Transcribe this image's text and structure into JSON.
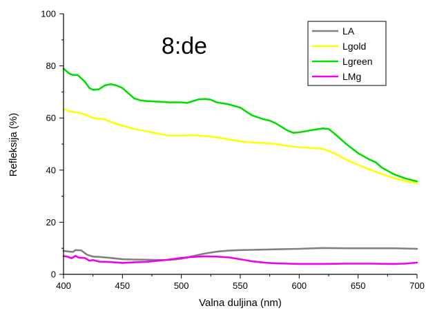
{
  "chart_data": {
    "type": "line",
    "title": "8:de",
    "xlabel": "Valna duljina (nm)",
    "ylabel": "Refleksija (%)",
    "xlim": [
      400,
      700
    ],
    "ylim": [
      0,
      100
    ],
    "xticks": [
      400,
      450,
      500,
      550,
      600,
      650,
      700
    ],
    "yticks": [
      0,
      20,
      40,
      60,
      80,
      100
    ],
    "grid": false,
    "legend_position": "top-right",
    "series": [
      {
        "name": "LA",
        "color": "#808080",
        "points": [
          [
            400,
            9
          ],
          [
            405,
            8.7
          ],
          [
            408,
            8.6
          ],
          [
            410,
            9.3
          ],
          [
            415,
            9.2
          ],
          [
            420,
            7.5
          ],
          [
            425,
            6.8
          ],
          [
            430,
            6.7
          ],
          [
            440,
            6.3
          ],
          [
            450,
            5.8
          ],
          [
            460,
            5.7
          ],
          [
            470,
            5.6
          ],
          [
            480,
            5.5
          ],
          [
            490,
            5.5
          ],
          [
            500,
            6
          ],
          [
            510,
            7
          ],
          [
            520,
            8
          ],
          [
            530,
            8.7
          ],
          [
            540,
            9.1
          ],
          [
            550,
            9.3
          ],
          [
            560,
            9.4
          ],
          [
            580,
            9.6
          ],
          [
            600,
            9.8
          ],
          [
            620,
            10.1
          ],
          [
            640,
            10
          ],
          [
            660,
            10
          ],
          [
            680,
            10
          ],
          [
            700,
            9.8
          ]
        ]
      },
      {
        "name": "Lgold",
        "color": "#ffff00",
        "points": [
          [
            400,
            63.5
          ],
          [
            405,
            62.5
          ],
          [
            410,
            62.3
          ],
          [
            415,
            61.8
          ],
          [
            420,
            61
          ],
          [
            425,
            60
          ],
          [
            430,
            59.8
          ],
          [
            435,
            59.5
          ],
          [
            440,
            58.5
          ],
          [
            450,
            57
          ],
          [
            460,
            55.8
          ],
          [
            470,
            55
          ],
          [
            480,
            54
          ],
          [
            490,
            53.3
          ],
          [
            500,
            53.3
          ],
          [
            510,
            53.4
          ],
          [
            520,
            53.1
          ],
          [
            530,
            52.6
          ],
          [
            540,
            51.8
          ],
          [
            550,
            51
          ],
          [
            560,
            50.6
          ],
          [
            570,
            50.4
          ],
          [
            580,
            50
          ],
          [
            590,
            49.3
          ],
          [
            600,
            48.8
          ],
          [
            610,
            48.5
          ],
          [
            620,
            48.2
          ],
          [
            630,
            46.5
          ],
          [
            640,
            44
          ],
          [
            650,
            42
          ],
          [
            660,
            40.2
          ],
          [
            670,
            38.5
          ],
          [
            680,
            37
          ],
          [
            690,
            35.8
          ],
          [
            700,
            35
          ]
        ]
      },
      {
        "name": "Lgreen",
        "color": "#00dd00",
        "points": [
          [
            400,
            79
          ],
          [
            405,
            77
          ],
          [
            408,
            76.5
          ],
          [
            412,
            76.5
          ],
          [
            418,
            74
          ],
          [
            422,
            71.5
          ],
          [
            425,
            70.8
          ],
          [
            430,
            71
          ],
          [
            435,
            72.5
          ],
          [
            440,
            73
          ],
          [
            445,
            72.5
          ],
          [
            450,
            71.5
          ],
          [
            455,
            69.5
          ],
          [
            460,
            67.5
          ],
          [
            465,
            66.8
          ],
          [
            470,
            66.5
          ],
          [
            480,
            66.3
          ],
          [
            490,
            66
          ],
          [
            500,
            66
          ],
          [
            505,
            65.8
          ],
          [
            510,
            66.5
          ],
          [
            515,
            67.2
          ],
          [
            520,
            67.3
          ],
          [
            525,
            67
          ],
          [
            530,
            66
          ],
          [
            540,
            65.3
          ],
          [
            550,
            64
          ],
          [
            555,
            62.5
          ],
          [
            560,
            61
          ],
          [
            570,
            59.5
          ],
          [
            575,
            59
          ],
          [
            580,
            58
          ],
          [
            590,
            55.2
          ],
          [
            595,
            54.3
          ],
          [
            600,
            54.5
          ],
          [
            610,
            55.3
          ],
          [
            620,
            56
          ],
          [
            625,
            55.8
          ],
          [
            630,
            54
          ],
          [
            640,
            50
          ],
          [
            650,
            46.5
          ],
          [
            660,
            44
          ],
          [
            665,
            43
          ],
          [
            670,
            41
          ],
          [
            680,
            38.5
          ],
          [
            690,
            36.8
          ],
          [
            700,
            35.7
          ]
        ]
      },
      {
        "name": "LMg",
        "color": "#ee00ee",
        "points": [
          [
            400,
            7
          ],
          [
            403,
            6.8
          ],
          [
            407,
            6.2
          ],
          [
            410,
            7.1
          ],
          [
            413,
            6.4
          ],
          [
            418,
            6.3
          ],
          [
            422,
            5.2
          ],
          [
            425,
            5.5
          ],
          [
            430,
            4.9
          ],
          [
            440,
            4.7
          ],
          [
            450,
            4.4
          ],
          [
            460,
            4.6
          ],
          [
            470,
            4.8
          ],
          [
            480,
            5.2
          ],
          [
            490,
            5.7
          ],
          [
            500,
            6.3
          ],
          [
            510,
            6.7
          ],
          [
            520,
            6.9
          ],
          [
            530,
            6.8
          ],
          [
            540,
            6.5
          ],
          [
            550,
            5.8
          ],
          [
            560,
            5
          ],
          [
            570,
            4.5
          ],
          [
            580,
            4.2
          ],
          [
            590,
            4.1
          ],
          [
            600,
            4
          ],
          [
            620,
            4
          ],
          [
            640,
            4.1
          ],
          [
            660,
            4.1
          ],
          [
            680,
            4
          ],
          [
            690,
            4.1
          ],
          [
            700,
            4.5
          ]
        ]
      }
    ]
  }
}
